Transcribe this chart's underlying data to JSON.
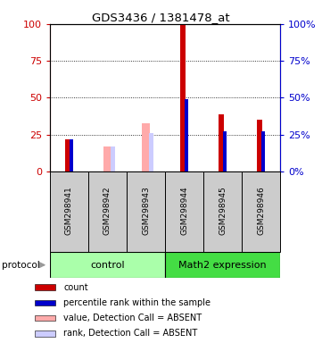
{
  "title": "GDS3436 / 1381478_at",
  "samples": [
    "GSM298941",
    "GSM298942",
    "GSM298943",
    "GSM298944",
    "GSM298945",
    "GSM298946"
  ],
  "red_bars": [
    22,
    0,
    0,
    100,
    39,
    35
  ],
  "blue_bars": [
    22,
    0,
    0,
    49,
    27,
    27
  ],
  "pink_bars": [
    0,
    17,
    33,
    0,
    0,
    0
  ],
  "lavender_bars": [
    0,
    17,
    26,
    0,
    0,
    0
  ],
  "absent": [
    false,
    true,
    true,
    false,
    false,
    false
  ],
  "groups": [
    {
      "label": "control",
      "start": 0,
      "end": 3,
      "color": "#aaffaa"
    },
    {
      "label": "Math2 expression",
      "start": 3,
      "end": 6,
      "color": "#44dd44"
    }
  ],
  "ylim": [
    0,
    100
  ],
  "yticks": [
    0,
    25,
    50,
    75,
    100
  ],
  "left_axis_color": "#cc0000",
  "right_axis_color": "#0000cc",
  "red_bar_color": "#cc0000",
  "blue_bar_color": "#0000cc",
  "pink_bar_color": "#ffaaaa",
  "lavender_bar_color": "#ccccff",
  "sample_bg_color": "#cccccc",
  "protocol_label": "protocol",
  "legend_items": [
    {
      "color": "#cc0000",
      "label": "count"
    },
    {
      "color": "#0000cc",
      "label": "percentile rank within the sample"
    },
    {
      "color": "#ffaaaa",
      "label": "value, Detection Call = ABSENT"
    },
    {
      "color": "#ccccff",
      "label": "rank, Detection Call = ABSENT"
    }
  ]
}
